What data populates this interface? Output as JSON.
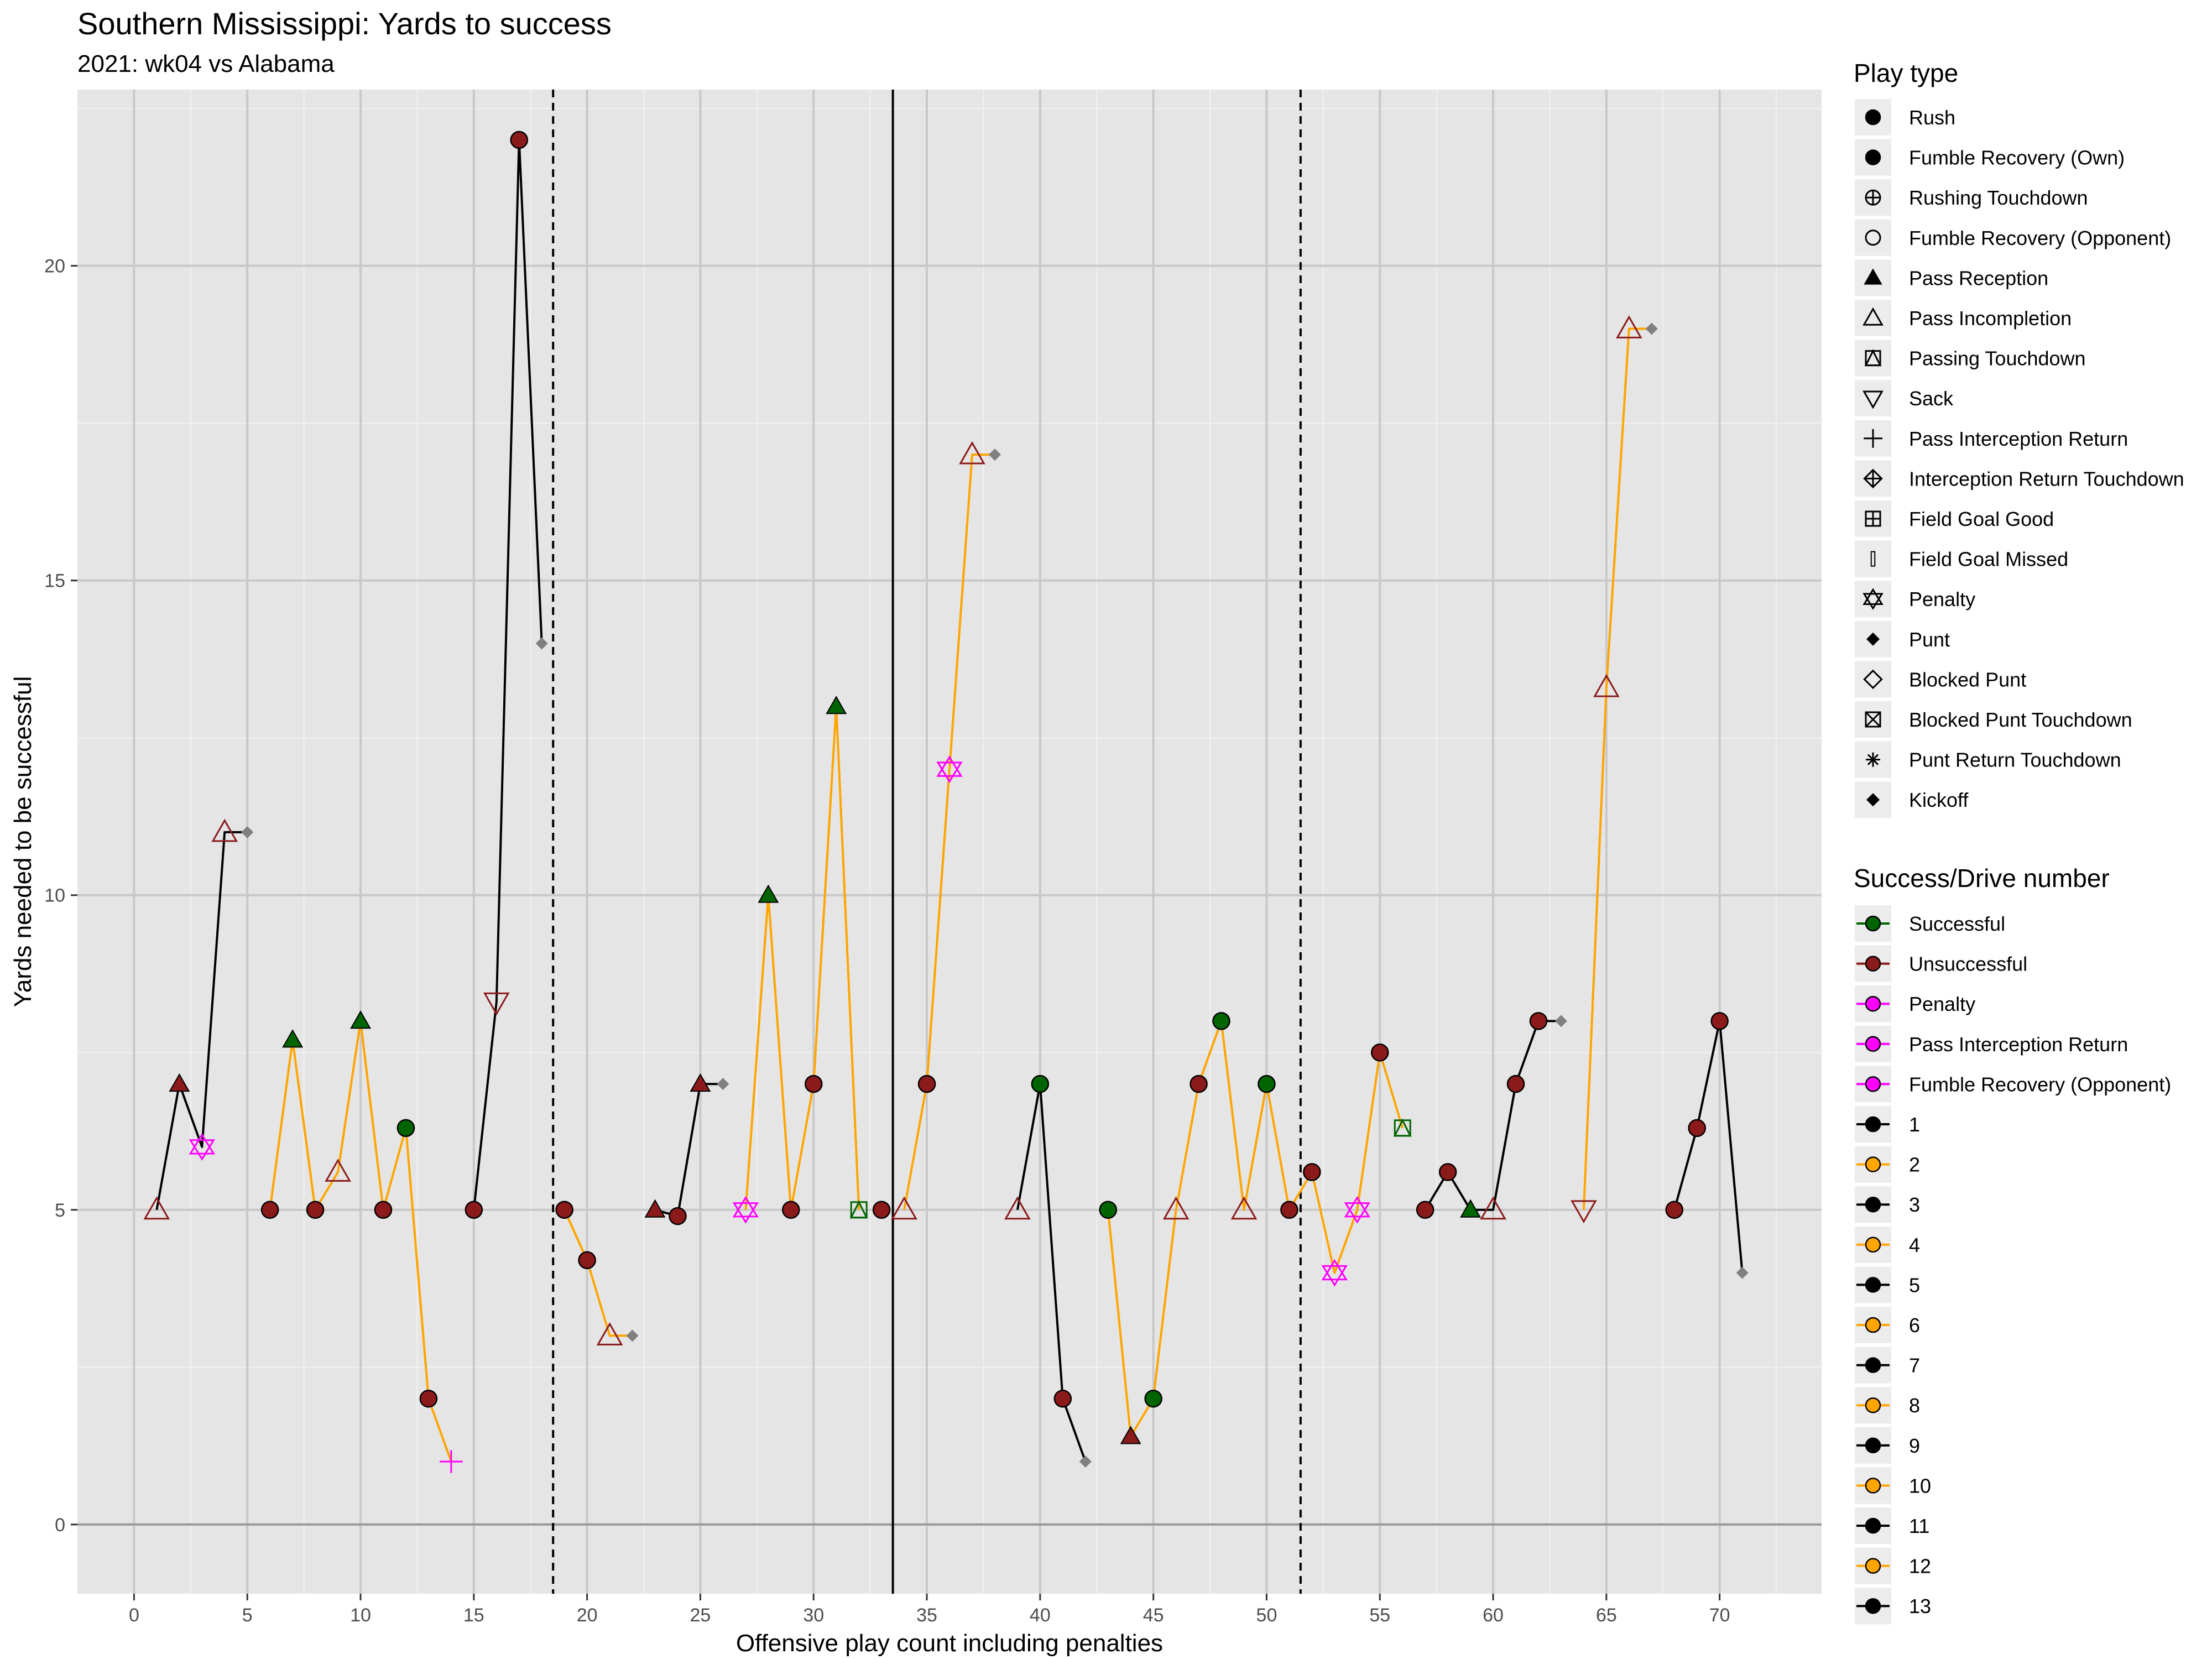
{
  "chart_data": {
    "type": "line",
    "title": "Southern Mississippi: Yards to success",
    "subtitle": "2021: wk04 vs Alabama",
    "xlabel": "Offensive play count including penalties",
    "ylabel": "Yards needed to be successful",
    "xlim": [
      -2.5,
      74.5
    ],
    "ylim": [
      -1.1,
      22.8
    ],
    "x_ticks": [
      0,
      5,
      10,
      15,
      20,
      25,
      30,
      35,
      40,
      45,
      50,
      55,
      60,
      65,
      70
    ],
    "y_ticks": [
      0,
      5,
      10,
      15,
      20
    ],
    "grid": true,
    "vlines": [
      {
        "x": 18.5,
        "style": "dashed"
      },
      {
        "x": 33.5,
        "style": "solid"
      },
      {
        "x": 51.5,
        "style": "dashed"
      }
    ],
    "hline": {
      "y": 0
    },
    "colors": {
      "Successful": "#006400",
      "Unsuccessful": "#8b1a1a",
      "Penalty": "#ff00ff",
      "Pass Interception Return": "#ff00ff",
      "Fumble Recovery (Opponent)": "#ff00ff",
      "odd_drive": "#000000",
      "even_drive": "#ffa500",
      "end_of_drive": "#808080"
    },
    "points": [
      {
        "x": 1,
        "y": 5,
        "play": "Pass Incompletion",
        "result": "Unsuccessful",
        "drive": 1
      },
      {
        "x": 2,
        "y": 7,
        "play": "Pass Reception",
        "result": "Unsuccessful",
        "drive": 1
      },
      {
        "x": 3,
        "y": 6,
        "play": "Penalty",
        "result": "Penalty",
        "drive": 1
      },
      {
        "x": 4,
        "y": 11,
        "play": "Pass Incompletion",
        "result": "Unsuccessful",
        "drive": 1
      },
      {
        "x": 5,
        "y": 11,
        "play": "Punt",
        "result": "End",
        "drive": 1
      },
      {
        "x": 6,
        "y": 5,
        "play": "Rush",
        "result": "Unsuccessful",
        "drive": 2
      },
      {
        "x": 7,
        "y": 7.7,
        "play": "Pass Reception",
        "result": "Successful",
        "drive": 2
      },
      {
        "x": 8,
        "y": 5,
        "play": "Rush",
        "result": "Unsuccessful",
        "drive": 2
      },
      {
        "x": 9,
        "y": 5.6,
        "play": "Pass Incompletion",
        "result": "Unsuccessful",
        "drive": 2
      },
      {
        "x": 10,
        "y": 8,
        "play": "Pass Reception",
        "result": "Successful",
        "drive": 2
      },
      {
        "x": 11,
        "y": 5,
        "play": "Rush",
        "result": "Unsuccessful",
        "drive": 2
      },
      {
        "x": 12,
        "y": 6.3,
        "play": "Rush",
        "result": "Successful",
        "drive": 2
      },
      {
        "x": 13,
        "y": 2,
        "play": "Rush",
        "result": "Unsuccessful",
        "drive": 2
      },
      {
        "x": 14,
        "y": 1,
        "play": "Pass Interception Return",
        "result": "Pass Interception Return",
        "drive": 2
      },
      {
        "x": 15,
        "y": 5,
        "play": "Rush",
        "result": "Unsuccessful",
        "drive": 3
      },
      {
        "x": 16,
        "y": 8.3,
        "play": "Sack",
        "result": "Unsuccessful",
        "drive": 3
      },
      {
        "x": 17,
        "y": 22,
        "play": "Rush",
        "result": "Unsuccessful",
        "drive": 3
      },
      {
        "x": 18,
        "y": 14,
        "play": "Punt",
        "result": "End",
        "drive": 3
      },
      {
        "x": 19,
        "y": 5,
        "play": "Rush",
        "result": "Unsuccessful",
        "drive": 4
      },
      {
        "x": 20,
        "y": 4.2,
        "play": "Rush",
        "result": "Unsuccessful",
        "drive": 4
      },
      {
        "x": 21,
        "y": 3,
        "play": "Pass Incompletion",
        "result": "Unsuccessful",
        "drive": 4
      },
      {
        "x": 22,
        "y": 3,
        "play": "Punt",
        "result": "End",
        "drive": 4
      },
      {
        "x": 23,
        "y": 5,
        "play": "Pass Reception",
        "result": "Unsuccessful",
        "drive": 5
      },
      {
        "x": 24,
        "y": 4.9,
        "play": "Rush",
        "result": "Unsuccessful",
        "drive": 5
      },
      {
        "x": 25,
        "y": 7,
        "play": "Pass Reception",
        "result": "Unsuccessful",
        "drive": 5
      },
      {
        "x": 26,
        "y": 7,
        "play": "Punt",
        "result": "End",
        "drive": 5
      },
      {
        "x": 27,
        "y": 5,
        "play": "Penalty",
        "result": "Penalty",
        "drive": 6
      },
      {
        "x": 28,
        "y": 10,
        "play": "Pass Reception",
        "result": "Successful",
        "drive": 6
      },
      {
        "x": 29,
        "y": 5,
        "play": "Rush",
        "result": "Unsuccessful",
        "drive": 6
      },
      {
        "x": 30,
        "y": 7,
        "play": "Rush",
        "result": "Unsuccessful",
        "drive": 6
      },
      {
        "x": 31,
        "y": 13,
        "play": "Pass Reception",
        "result": "Successful",
        "drive": 6
      },
      {
        "x": 32,
        "y": 5,
        "play": "Passing Touchdown",
        "result": "Successful",
        "drive": 6
      },
      {
        "x": 33,
        "y": 5,
        "play": "Rush",
        "result": "Unsuccessful",
        "drive": 7
      },
      {
        "x": 34,
        "y": 5,
        "play": "Pass Incompletion",
        "result": "Unsuccessful",
        "drive": 8
      },
      {
        "x": 35,
        "y": 7,
        "play": "Rush",
        "result": "Unsuccessful",
        "drive": 8
      },
      {
        "x": 36,
        "y": 12,
        "play": "Penalty",
        "result": "Penalty",
        "drive": 8
      },
      {
        "x": 37,
        "y": 17,
        "play": "Pass Incompletion",
        "result": "Unsuccessful",
        "drive": 8
      },
      {
        "x": 38,
        "y": 17,
        "play": "Punt",
        "result": "End",
        "drive": 8
      },
      {
        "x": 39,
        "y": 5,
        "play": "Pass Incompletion",
        "result": "Unsuccessful",
        "drive": 9
      },
      {
        "x": 40,
        "y": 7,
        "play": "Rush",
        "result": "Successful",
        "drive": 9
      },
      {
        "x": 41,
        "y": 2,
        "play": "Rush",
        "result": "Unsuccessful",
        "drive": 9
      },
      {
        "x": 42,
        "y": 1,
        "play": "Punt",
        "result": "End",
        "drive": 9
      },
      {
        "x": 43,
        "y": 5,
        "play": "Rush",
        "result": "Successful",
        "drive": 10
      },
      {
        "x": 44,
        "y": 1.4,
        "play": "Pass Reception",
        "result": "Unsuccessful",
        "drive": 10
      },
      {
        "x": 45,
        "y": 2,
        "play": "Rush",
        "result": "Successful",
        "drive": 10
      },
      {
        "x": 46,
        "y": 5,
        "play": "Pass Incompletion",
        "result": "Unsuccessful",
        "drive": 10
      },
      {
        "x": 47,
        "y": 7,
        "play": "Rush",
        "result": "Unsuccessful",
        "drive": 10
      },
      {
        "x": 48,
        "y": 8,
        "play": "Rush",
        "result": "Successful",
        "drive": 10
      },
      {
        "x": 49,
        "y": 5,
        "play": "Pass Incompletion",
        "result": "Unsuccessful",
        "drive": 10
      },
      {
        "x": 50,
        "y": 7,
        "play": "Rush",
        "result": "Successful",
        "drive": 10
      },
      {
        "x": 51,
        "y": 5,
        "play": "Rush",
        "result": "Unsuccessful",
        "drive": 10
      },
      {
        "x": 52,
        "y": 5.6,
        "play": "Rush",
        "result": "Unsuccessful",
        "drive": 10
      },
      {
        "x": 53,
        "y": 4,
        "play": "Penalty",
        "result": "Penalty",
        "drive": 10
      },
      {
        "x": 54,
        "y": 5,
        "play": "Penalty",
        "result": "Penalty",
        "drive": 10
      },
      {
        "x": 55,
        "y": 7.5,
        "play": "Rush",
        "result": "Unsuccessful",
        "drive": 10
      },
      {
        "x": 56,
        "y": 6.3,
        "play": "Passing Touchdown",
        "result": "Successful",
        "drive": 10
      },
      {
        "x": 57,
        "y": 5,
        "play": "Rush",
        "result": "Unsuccessful",
        "drive": 11
      },
      {
        "x": 58,
        "y": 5.6,
        "play": "Rush",
        "result": "Unsuccessful",
        "drive": 11
      },
      {
        "x": 59,
        "y": 5,
        "play": "Pass Reception",
        "result": "Successful",
        "drive": 11
      },
      {
        "x": 60,
        "y": 5,
        "play": "Pass Incompletion",
        "result": "Unsuccessful",
        "drive": 11
      },
      {
        "x": 61,
        "y": 7,
        "play": "Rush",
        "result": "Unsuccessful",
        "drive": 11
      },
      {
        "x": 62,
        "y": 8,
        "play": "Rush",
        "result": "Unsuccessful",
        "drive": 11
      },
      {
        "x": 63,
        "y": 8,
        "play": "Punt",
        "result": "End",
        "drive": 11
      },
      {
        "x": 64,
        "y": 5,
        "play": "Sack",
        "result": "Unsuccessful",
        "drive": 12
      },
      {
        "x": 65,
        "y": 13.3,
        "play": "Pass Incompletion",
        "result": "Unsuccessful",
        "drive": 12
      },
      {
        "x": 66,
        "y": 19,
        "play": "Pass Incompletion",
        "result": "Unsuccessful",
        "drive": 12
      },
      {
        "x": 67,
        "y": 19,
        "play": "Punt",
        "result": "End",
        "drive": 12
      },
      {
        "x": 68,
        "y": 5,
        "play": "Rush",
        "result": "Unsuccessful",
        "drive": 13
      },
      {
        "x": 69,
        "y": 6.3,
        "play": "Rush",
        "result": "Unsuccessful",
        "drive": 13
      },
      {
        "x": 70,
        "y": 8,
        "play": "Rush",
        "result": "Unsuccessful",
        "drive": 13
      },
      {
        "x": 71,
        "y": 4,
        "play": "Punt",
        "result": "End",
        "drive": 13
      }
    ],
    "legend": {
      "position": "right",
      "play_type": {
        "title": "Play type",
        "items": [
          {
            "label": "Rush",
            "shape": "circle-filled"
          },
          {
            "label": "Fumble Recovery (Own)",
            "shape": "circle-filled"
          },
          {
            "label": "Rushing Touchdown",
            "shape": "circle-plus"
          },
          {
            "label": "Fumble Recovery (Opponent)",
            "shape": "circle-open"
          },
          {
            "label": "Pass Reception",
            "shape": "triangle-filled"
          },
          {
            "label": "Pass Incompletion",
            "shape": "triangle-open"
          },
          {
            "label": "Passing Touchdown",
            "shape": "square-triangle"
          },
          {
            "label": "Sack",
            "shape": "triangle-down-open"
          },
          {
            "label": "Pass Interception Return",
            "shape": "plus"
          },
          {
            "label": "Interception Return Touchdown",
            "shape": "diamond-plus"
          },
          {
            "label": "Field Goal Good",
            "shape": "square-plus"
          },
          {
            "label": "Field Goal Missed",
            "shape": "bar-open"
          },
          {
            "label": "Penalty",
            "shape": "star-of-david"
          },
          {
            "label": "Punt",
            "shape": "diamond-filled"
          },
          {
            "label": "Blocked Punt",
            "shape": "diamond-open"
          },
          {
            "label": "Blocked Punt Touchdown",
            "shape": "square-cross"
          },
          {
            "label": "Punt Return Touchdown",
            "shape": "asterisk"
          },
          {
            "label": "Kickoff",
            "shape": "diamond-filled"
          }
        ]
      },
      "success_drive": {
        "title": "Success/Drive number",
        "items": [
          {
            "label": "Successful",
            "color": "#006400"
          },
          {
            "label": "Unsuccessful",
            "color": "#8b1a1a"
          },
          {
            "label": "Penalty",
            "color": "#ff00ff"
          },
          {
            "label": "Pass Interception Return",
            "color": "#ff00ff"
          },
          {
            "label": "Fumble Recovery (Opponent)",
            "color": "#ff00ff"
          },
          {
            "label": "1",
            "color": "#000000"
          },
          {
            "label": "2",
            "color": "#ffa500"
          },
          {
            "label": "3",
            "color": "#000000"
          },
          {
            "label": "4",
            "color": "#ffa500"
          },
          {
            "label": "5",
            "color": "#000000"
          },
          {
            "label": "6",
            "color": "#ffa500"
          },
          {
            "label": "7",
            "color": "#000000"
          },
          {
            "label": "8",
            "color": "#ffa500"
          },
          {
            "label": "9",
            "color": "#000000"
          },
          {
            "label": "10",
            "color": "#ffa500"
          },
          {
            "label": "11",
            "color": "#000000"
          },
          {
            "label": "12",
            "color": "#ffa500"
          },
          {
            "label": "13",
            "color": "#000000"
          }
        ]
      }
    }
  }
}
